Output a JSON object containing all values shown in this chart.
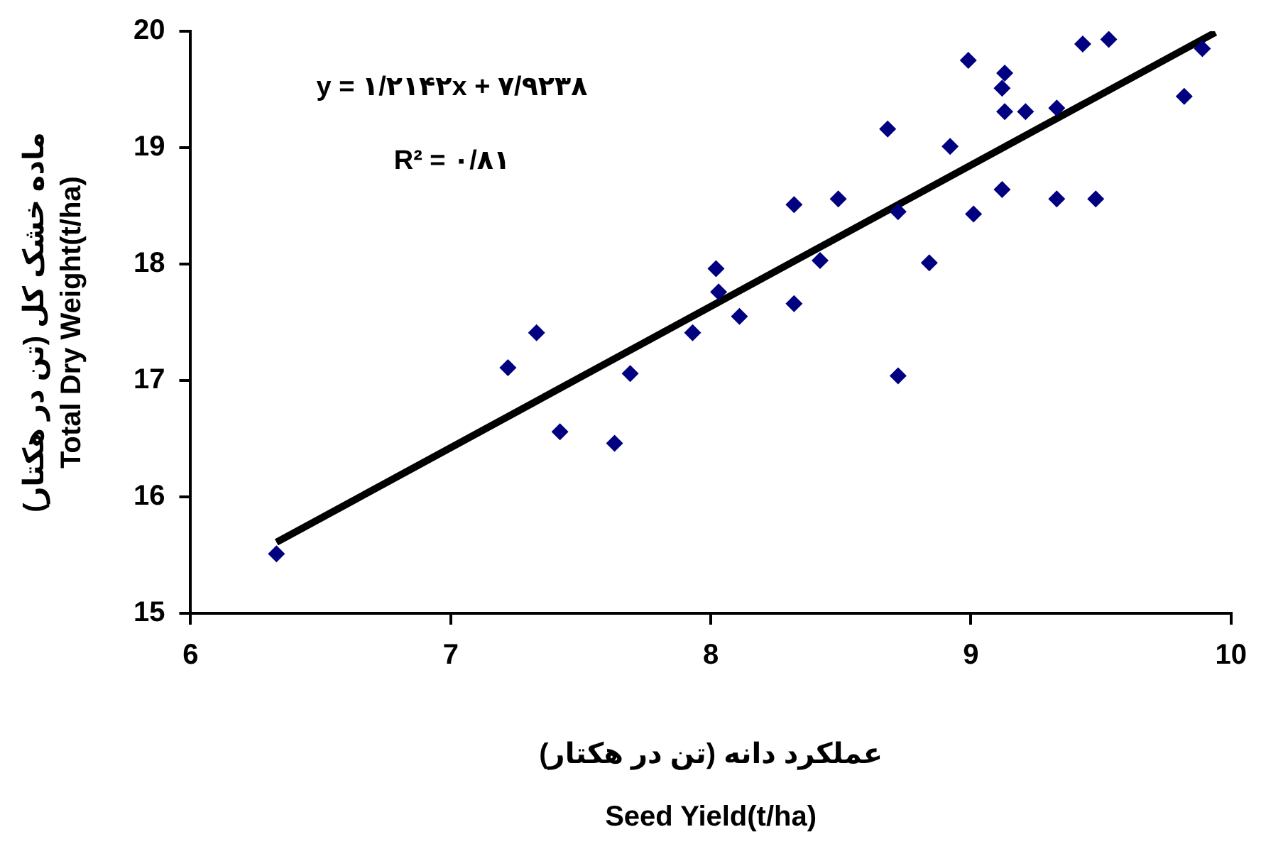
{
  "chart_data": {
    "type": "scatter",
    "xlabel": "عملکرد دانه (تن در هکتار)\nSeed Yield(t/ha)",
    "ylabel": "ماده خشک کل (تن در هکتار)\nTotal Dry Weight(t/ha)",
    "xlim": [
      6,
      10
    ],
    "xticks": [
      6,
      7,
      8,
      9,
      10
    ],
    "ylim": [
      15,
      20
    ],
    "yticks": [
      15,
      16,
      17,
      18,
      19,
      20
    ],
    "grid": false,
    "legend": false,
    "marker": "diamond",
    "series": [
      {
        "color": "#000080",
        "x": [
          6.33,
          7.22,
          7.33,
          7.42,
          7.63,
          7.69,
          7.93,
          8.02,
          8.03,
          8.11,
          8.32,
          8.32,
          8.49,
          8.42,
          8.68,
          8.72,
          8.72,
          8.84,
          8.92,
          8.99,
          9.01,
          9.12,
          9.12,
          9.13,
          9.13,
          9.21,
          9.33,
          9.33,
          9.48,
          9.43,
          9.53,
          9.82,
          9.89
        ],
        "values": [
          15.51,
          17.11,
          17.41,
          16.56,
          16.46,
          17.06,
          17.41,
          17.96,
          17.76,
          17.55,
          18.51,
          17.66,
          18.56,
          18.03,
          19.16,
          18.45,
          17.04,
          18.01,
          19.01,
          19.75,
          18.43,
          18.64,
          19.51,
          19.64,
          19.31,
          19.31,
          19.34,
          18.56,
          18.56,
          19.89,
          19.93,
          19.44,
          19.85
        ]
      },
      {
        "type": "line",
        "color": "#000000",
        "marker": "none",
        "x": [
          6.33,
          9.94
        ],
        "values": [
          15.61,
          19.99
        ]
      }
    ],
    "annotations": [
      "y = ۱/۲۱۴۲x + ۷/۹۲۳۸",
      "R² = ۰/۸۱"
    ]
  }
}
